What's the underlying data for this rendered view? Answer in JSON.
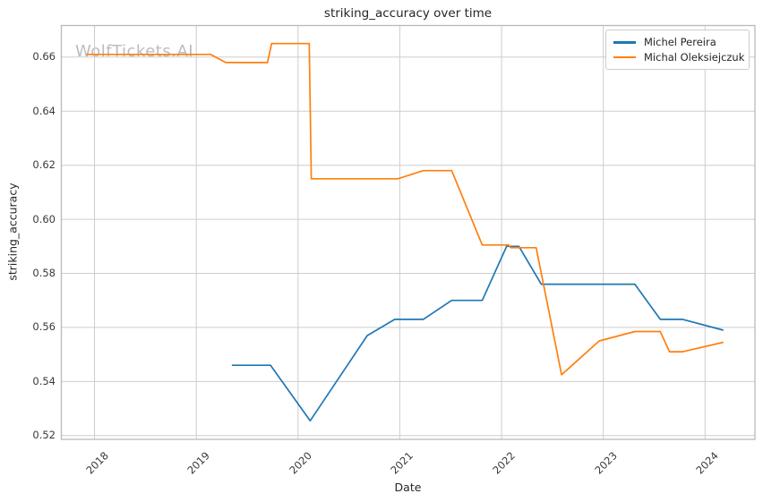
{
  "watermark": "WolfTickets.AI",
  "chart_data": {
    "type": "line",
    "title": "striking_accuracy over time",
    "xlabel": "Date",
    "ylabel": "striking_accuracy",
    "x_unit": "decimal_year",
    "xlim": [
      2017.674,
      2024.49
    ],
    "ylim": [
      0.5186,
      0.6717
    ],
    "xticks": [
      2018,
      2019,
      2020,
      2021,
      2022,
      2023,
      2024
    ],
    "yticks": [
      0.52,
      0.54,
      0.56,
      0.58,
      0.6,
      0.62,
      0.64,
      0.66
    ],
    "grid": true,
    "legend_position": "upper-right",
    "colors": {
      "grid": "#cdcdcd",
      "spine": "#b9b9b9",
      "title_text": "#262626",
      "tick_text": "#3a3a3a",
      "watermark": "#bcbcbc",
      "background": "#ffffff"
    },
    "series": [
      {
        "name": "Michel Pereira",
        "color": "#1f77b4",
        "points": [
          [
            2019.35,
            0.546
          ],
          [
            2019.73,
            0.546
          ],
          [
            2020.12,
            0.5255
          ],
          [
            2020.68,
            0.557
          ],
          [
            2020.95,
            0.563
          ],
          [
            2021.23,
            0.563
          ],
          [
            2021.51,
            0.57
          ],
          [
            2021.81,
            0.57
          ],
          [
            2022.05,
            0.59
          ],
          [
            2022.17,
            0.59
          ],
          [
            2022.39,
            0.576
          ],
          [
            2023.31,
            0.576
          ],
          [
            2023.56,
            0.563
          ],
          [
            2023.78,
            0.563
          ],
          [
            2024.18,
            0.559
          ]
        ]
      },
      {
        "name": "Michal Oleksiejczuk",
        "color": "#ff7f0e",
        "points": [
          [
            2017.92,
            0.661
          ],
          [
            2019.14,
            0.661
          ],
          [
            2019.29,
            0.658
          ],
          [
            2019.7,
            0.658
          ],
          [
            2019.74,
            0.665
          ],
          [
            2020.11,
            0.665
          ],
          [
            2020.13,
            0.615
          ],
          [
            2020.98,
            0.615
          ],
          [
            2021.23,
            0.618
          ],
          [
            2021.51,
            0.618
          ],
          [
            2021.81,
            0.5905
          ],
          [
            2022.07,
            0.5905
          ],
          [
            2022.09,
            0.5895
          ],
          [
            2022.34,
            0.5895
          ],
          [
            2022.59,
            0.5425
          ],
          [
            2022.96,
            0.555
          ],
          [
            2023.31,
            0.5585
          ],
          [
            2023.56,
            0.5585
          ],
          [
            2023.65,
            0.551
          ],
          [
            2023.78,
            0.551
          ],
          [
            2024.18,
            0.5545
          ]
        ]
      }
    ]
  }
}
